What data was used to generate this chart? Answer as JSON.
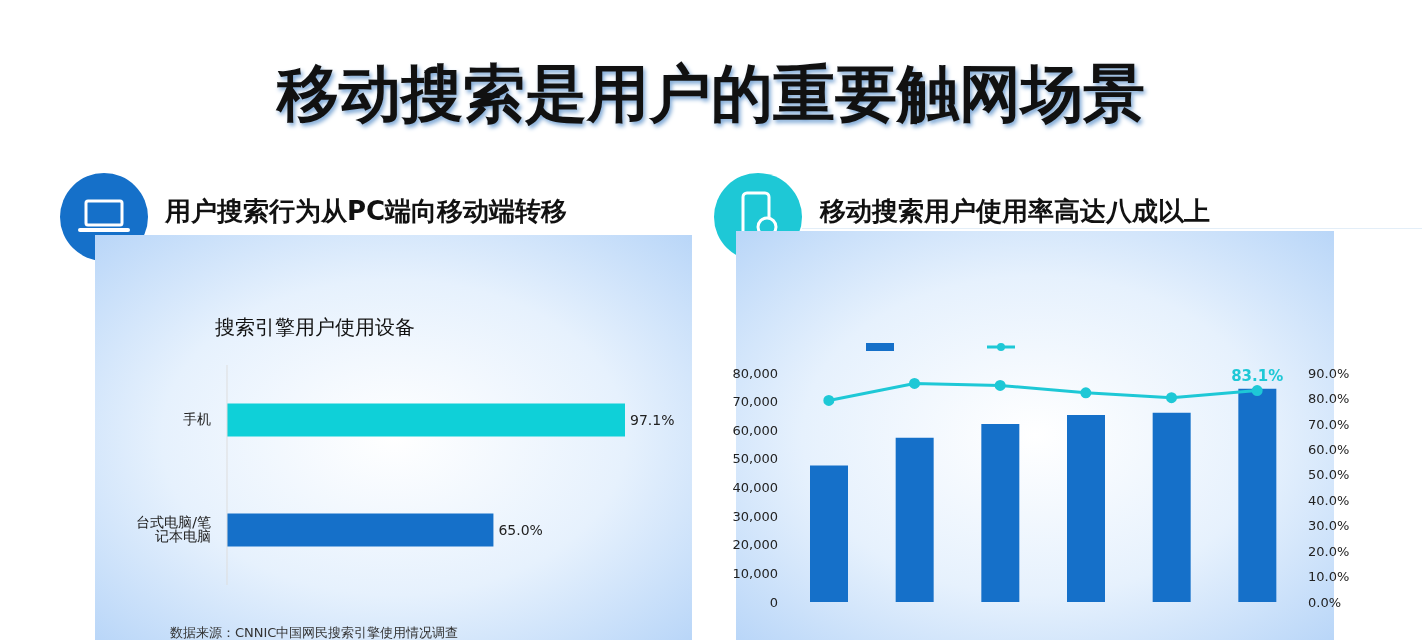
{
  "chart_data": [
    {
      "type": "other",
      "title": "移动搜索是用户的重要触网场景"
    },
    {
      "type": "bar",
      "orientation": "horizontal",
      "title": "用户搜索行为从PC端向移动端转移",
      "subtitle": "搜索引擎用户使用设备",
      "categories": [
        "手机",
        "台式电脑/笔记本电脑"
      ],
      "values": [
        97.1,
        65.0
      ],
      "colors": [
        "#0fd0d8",
        "#1570c9"
      ],
      "value_labels": [
        "97.1%",
        "65.0%"
      ],
      "annotations": [
        "数据来源：CNNIC中国网民搜索引擎使用情况调查"
      ]
    },
    {
      "type": "bar",
      "title": "移动搜索用户使用率高达八成以上",
      "categories": [
        null,
        null,
        null,
        null,
        null,
        null
      ],
      "color": "#1570c9",
      "values": [
        47700,
        57400,
        62200,
        65300,
        66100,
        74500
      ],
      "ylim": [
        0,
        80000
      ],
      "yticks": [
        0,
        {
          "value": 10000,
          "label": "10,000"
        },
        {
          "value": 20000,
          "label": "20,000"
        },
        {
          "value": 30000,
          "label": "30,000"
        },
        {
          "value": 40000,
          "label": "40,000"
        },
        {
          "value": 50000,
          "label": "50,000"
        },
        {
          "value": 60000,
          "label": "60,000"
        },
        {
          "value": 70000,
          "label": "70,000"
        },
        {
          "value": 80000,
          "label": "80,000"
        }
      ]
    },
    {
      "type": "line",
      "categories": [
        null,
        null,
        null,
        null,
        null,
        null
      ],
      "color": "#1ec8d6",
      "marker": "circle",
      "values": [
        79.2,
        85.9,
        85.1,
        82.2,
        80.3,
        83.1
      ],
      "value_labels": [
        null,
        null,
        null,
        null,
        null,
        "83.1%"
      ],
      "ylim": [
        0,
        90
      ],
      "yticks": [
        {
          "value": 0,
          "label": "0.0%"
        },
        {
          "value": 10,
          "label": "10.0%"
        },
        {
          "value": 20,
          "label": "20.0%"
        },
        {
          "value": 30,
          "label": "30.0%"
        },
        {
          "value": 40,
          "label": "40.0%"
        },
        {
          "value": 50,
          "label": "50.0%"
        },
        {
          "value": 60,
          "label": "60.0%"
        },
        {
          "value": 70,
          "label": "70.0%"
        },
        {
          "value": 80,
          "label": "80.0%"
        },
        {
          "value": 90,
          "label": "90.0%"
        }
      ]
    }
  ]
}
